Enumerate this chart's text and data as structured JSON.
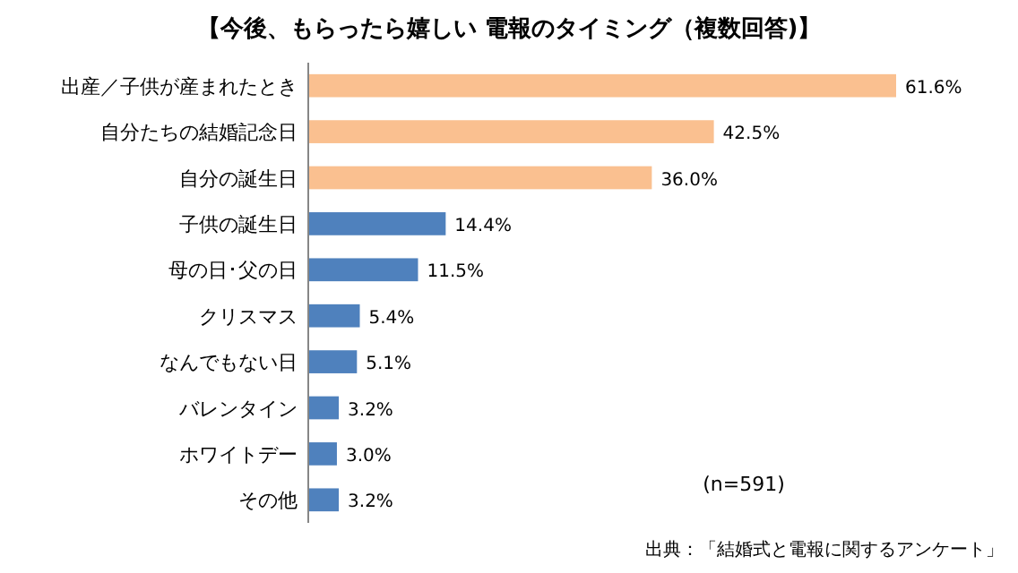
{
  "chart_data": {
    "type": "bar",
    "orientation": "horizontal",
    "title": "【今後、もらったら嬉しい 電報のタイミング（複数回答)】",
    "categories": [
      "出産／子供が産まれたとき",
      "自分たちの結婚記念日",
      "自分の誕生日",
      "子供の誕生日",
      "母の日･父の日",
      "クリスマス",
      "なんでもない日",
      "バレンタイン",
      "ホワイトデー",
      "その他"
    ],
    "values": [
      61.6,
      42.5,
      36.0,
      14.4,
      11.5,
      5.4,
      5.1,
      3.2,
      3.0,
      3.2
    ],
    "value_labels": [
      "61.6%",
      "42.5%",
      "36.0%",
      "14.4%",
      "11.5%",
      "5.4%",
      "5.1%",
      "3.2%",
      "3.0%",
      "3.2%"
    ],
    "colors": [
      "#fac090",
      "#fac090",
      "#fac090",
      "#4f81bd",
      "#4f81bd",
      "#4f81bd",
      "#4f81bd",
      "#4f81bd",
      "#4f81bd",
      "#4f81bd"
    ],
    "annotations": [
      "(n=591)",
      "出典：「結婚式と電報に関するアンケート」"
    ]
  }
}
